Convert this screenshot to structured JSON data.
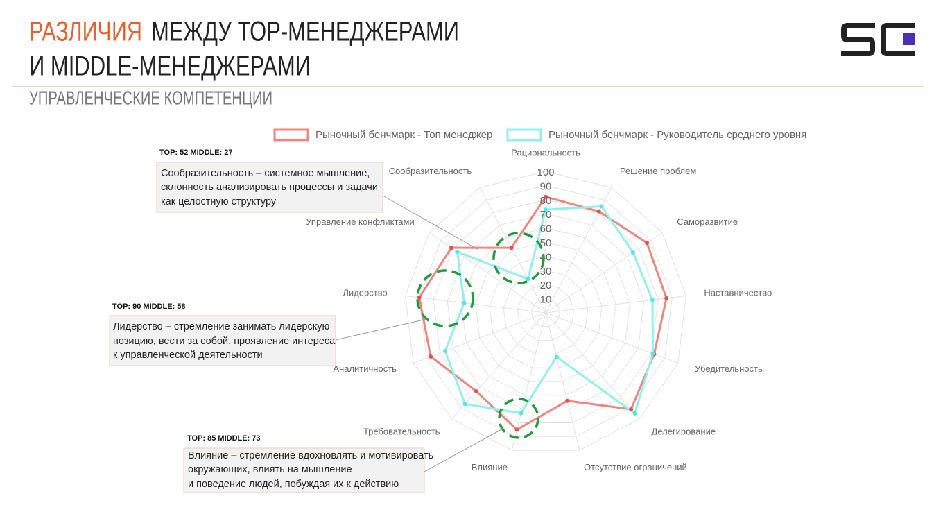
{
  "header": {
    "title_highlight": "РАЗЛИЧИЯ",
    "title_line1": "МЕЖДУ ТОР-МЕНЕДЖЕРАМИ",
    "title_line2": "И MIDDLE-МЕНЕДЖЕРАМИ",
    "subtitle": "УПРАВЛЕНЧЕСКИЕ КОМПЕТЕНЦИИ"
  },
  "chart_data": {
    "type": "radar",
    "categories": [
      "Рациональность",
      "Решение проблем",
      "Саморазвитие",
      "Наставничество",
      "Убедительность",
      "Делегирование",
      "Отсутствие ограничений",
      "Влияние",
      "Требовательность",
      "Аналитичность",
      "Лидерство",
      "Управление конфликтами",
      "Сообразительность"
    ],
    "series": [
      {
        "name": "Рыночный бенчмарк - Топ менеджер",
        "color": "#f0857c",
        "values": [
          82,
          81,
          87,
          86,
          82,
          91,
          64,
          85,
          74,
          87,
          90,
          81,
          52
        ]
      },
      {
        "name": "Рыночный бенчмарк - Руководитель среднего уровня",
        "color": "#8ff0ee",
        "values": [
          73,
          85,
          75,
          76,
          81,
          95,
          32,
          73,
          86,
          76,
          58,
          76,
          27
        ]
      }
    ],
    "rlim": [
      0,
      100
    ],
    "rticks": [
      10,
      20,
      30,
      40,
      50,
      60,
      70,
      80,
      90,
      100
    ],
    "grid": true,
    "legend": "top"
  },
  "annotations": [
    {
      "tag": "TOP: 52 MIDDLE: 27",
      "lines": [
        "Сообразительность – системное мышление,",
        "склонность анализировать процессы и задачи",
        "как целостную структуру"
      ]
    },
    {
      "tag": "TOP: 90 MIDDLE: 58",
      "lines": [
        "Лидерство – стремление занимать лидерскую",
        "позицию, вести за собой, проявление интереса",
        "к управленческой деятельности"
      ]
    },
    {
      "tag": "TOP: 85 MIDDLE: 73",
      "lines": [
        "Влияние – стремление вдохновлять и мотивировать",
        "окружающих, влиять на мышление",
        "и поведение людей, побуждая их к действию"
      ]
    }
  ]
}
